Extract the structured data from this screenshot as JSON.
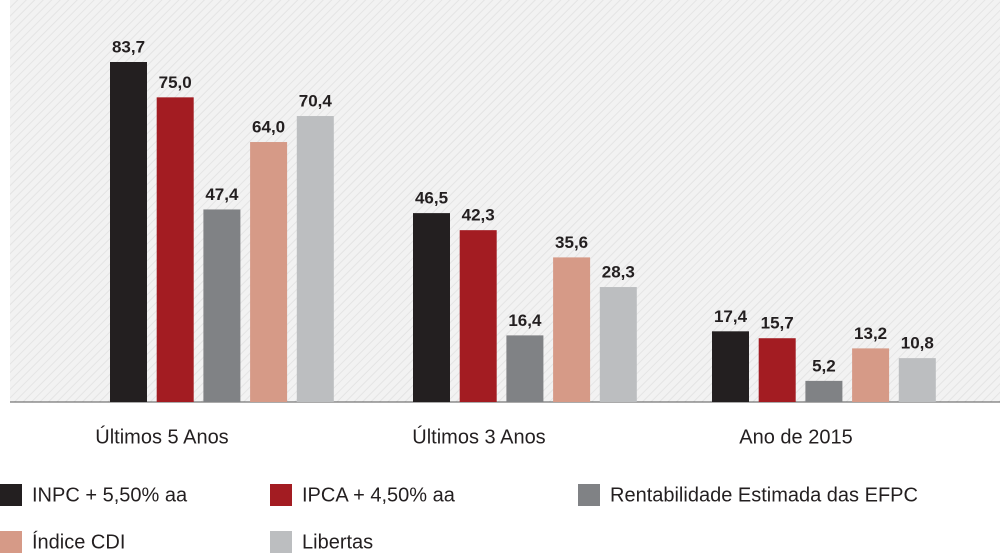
{
  "chart_data": {
    "type": "bar",
    "categories": [
      "Últimos 5 Anos",
      "Últimos 3 Anos",
      "Ano de 2015"
    ],
    "series": [
      {
        "name": "INPC + 5,50% aa",
        "color": "#231f20",
        "values": [
          83.7,
          46.5,
          17.4
        ],
        "value_labels": [
          "83,7",
          "46,5",
          "17,4"
        ]
      },
      {
        "name": "IPCA + 4,50% aa",
        "color": "#a31c22",
        "values": [
          75.0,
          42.3,
          15.7
        ],
        "value_labels": [
          "75,0",
          "42,3",
          "15,7"
        ]
      },
      {
        "name": "Rentabilidade Estimada das EFPC",
        "color": "#808285",
        "values": [
          47.4,
          16.4,
          5.2
        ],
        "value_labels": [
          "47,4",
          "16,4",
          "5,2"
        ]
      },
      {
        "name": "Índice CDI",
        "color": "#d69a87",
        "values": [
          64.0,
          35.6,
          13.2
        ],
        "value_labels": [
          "64,0",
          "35,6",
          "13,2"
        ]
      },
      {
        "name": "Libertas",
        "color": "#bcbec0",
        "values": [
          70.4,
          28.3,
          10.8
        ],
        "value_labels": [
          "70,4",
          "28,3",
          "10,8"
        ]
      }
    ]
  }
}
